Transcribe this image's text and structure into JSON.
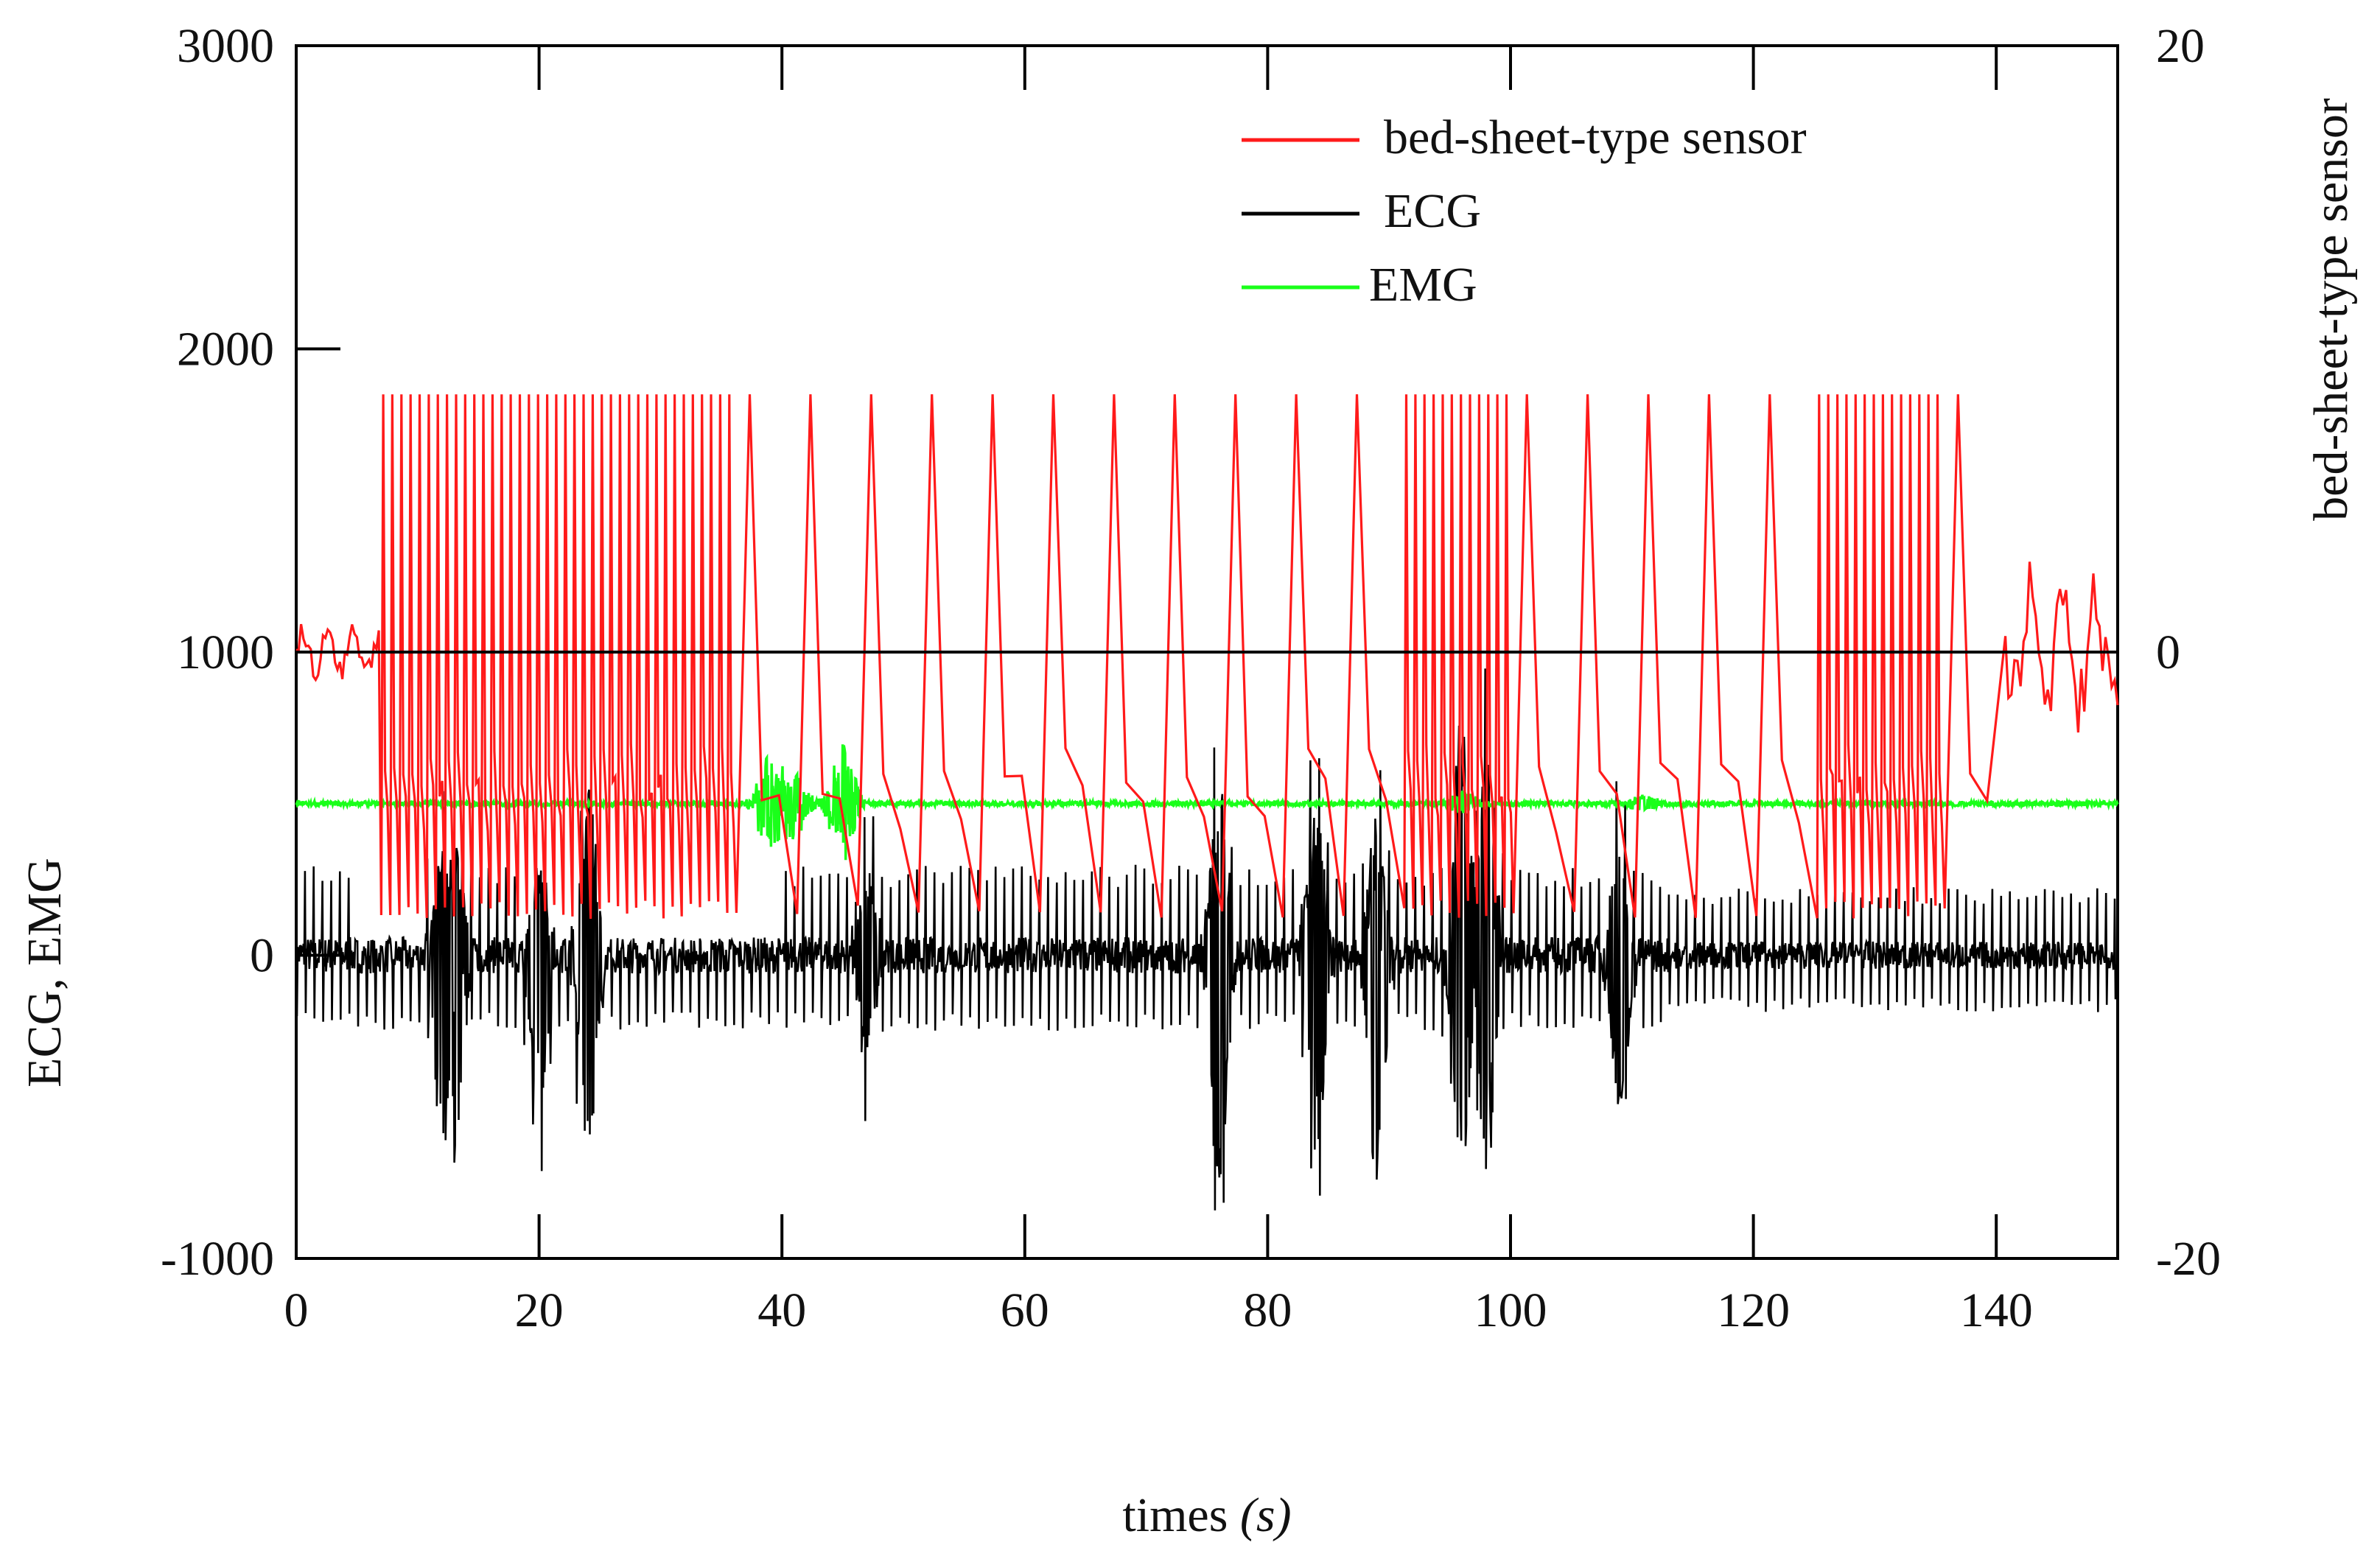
{
  "chart_data": {
    "type": "line",
    "title": "",
    "xlabel": "times",
    "xlabel_unit": "(s)",
    "ylabel_left": "ECG, EMG",
    "ylabel_right": "bed-sheet-type sensor",
    "xlim": [
      0,
      150
    ],
    "ylim_left": [
      -1000,
      3000
    ],
    "ylim_right": [
      -20,
      20
    ],
    "x_ticks": [
      "0",
      "20",
      "40",
      "60",
      "80",
      "100",
      "120",
      "140"
    ],
    "y_left_ticks": [
      "3000",
      "2000",
      "1000",
      "0",
      "-1000"
    ],
    "y_right_ticks": [
      "20",
      "0",
      "-20"
    ],
    "grid": false,
    "legend_position": "top-center",
    "series": [
      {
        "name": "bed-sheet-type sensor",
        "color": "#ff1a1a",
        "axis": "right",
        "baseline": 0,
        "oscillation_max": 8.5,
        "oscillation_min": -8.8,
        "active_interval": [
          7,
          138
        ],
        "fast_intervals": [
          [
            7,
            36
          ],
          [
            88,
            100
          ],
          [
            124,
            135
          ]
        ],
        "slow_period": 5
      },
      {
        "name": "ECG",
        "color": "#000000",
        "axis": "left",
        "baseline": 0,
        "typical_range": [
          -250,
          300
        ],
        "bursts": [
          {
            "t": 12,
            "min": -600,
            "max": 300
          },
          {
            "t": 13,
            "min": -700,
            "max": 400
          },
          {
            "t": 20,
            "min": -600,
            "max": 300
          },
          {
            "t": 24,
            "min": -680,
            "max": 640
          },
          {
            "t": 47,
            "min": -350,
            "max": 300
          },
          {
            "t": 76,
            "min": -780,
            "max": 560
          },
          {
            "t": 84,
            "min": -700,
            "max": 560
          },
          {
            "t": 89,
            "min": -780,
            "max": 430
          },
          {
            "t": 96,
            "min": -800,
            "max": 800
          },
          {
            "t": 98,
            "min": -760,
            "max": 700
          },
          {
            "t": 109,
            "min": -560,
            "max": 360
          }
        ]
      },
      {
        "name": "EMG",
        "color": "#1aff1a",
        "axis": "left",
        "baseline": 500,
        "bursts": [
          {
            "t": 39,
            "min": 360,
            "max": 660
          },
          {
            "t": 41,
            "min": 400,
            "max": 620
          },
          {
            "t": 45,
            "min": 320,
            "max": 700
          },
          {
            "t": 96,
            "min": 460,
            "max": 540
          },
          {
            "t": 111,
            "min": 470,
            "max": 530
          }
        ]
      }
    ],
    "reference_line": {
      "axis": "right",
      "value": 0,
      "color": "#000000"
    }
  }
}
